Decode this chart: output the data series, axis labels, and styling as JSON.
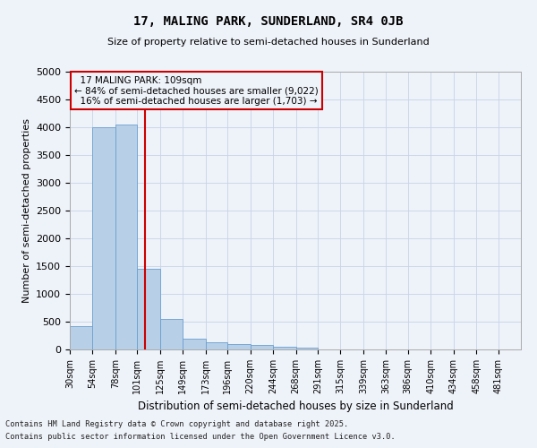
{
  "title": "17, MALING PARK, SUNDERLAND, SR4 0JB",
  "subtitle": "Size of property relative to semi-detached houses in Sunderland",
  "xlabel": "Distribution of semi-detached houses by size in Sunderland",
  "ylabel": "Number of semi-detached properties",
  "property_size": 109,
  "annotation_line1": "  17 MALING PARK: 109sqm",
  "annotation_line2": "← 84% of semi-detached houses are smaller (9,022)",
  "annotation_line3": "  16% of semi-detached houses are larger (1,703) →",
  "bins": [
    30,
    54,
    78,
    101,
    125,
    149,
    173,
    196,
    220,
    244,
    268,
    291,
    315,
    339,
    363,
    386,
    410,
    434,
    458,
    481,
    505
  ],
  "counts": [
    420,
    4000,
    4050,
    1450,
    550,
    200,
    130,
    100,
    75,
    55,
    40,
    0,
    0,
    0,
    0,
    0,
    0,
    0,
    0,
    0
  ],
  "bar_color": "#b8cfe8",
  "bar_edge_color": "#6a9fcf",
  "red_line_color": "#cc0000",
  "annotation_box_color": "#cc0000",
  "background_color": "#eef2f9",
  "grid_color": "#c8d4e8",
  "footer_line1": "Contains HM Land Registry data © Crown copyright and database right 2025.",
  "footer_line2": "Contains public sector information licensed under the Open Government Licence v3.0.",
  "ylim": [
    0,
    5000
  ],
  "yticks": [
    0,
    500,
    1000,
    1500,
    2000,
    2500,
    3000,
    3500,
    4000,
    4500,
    5000
  ]
}
